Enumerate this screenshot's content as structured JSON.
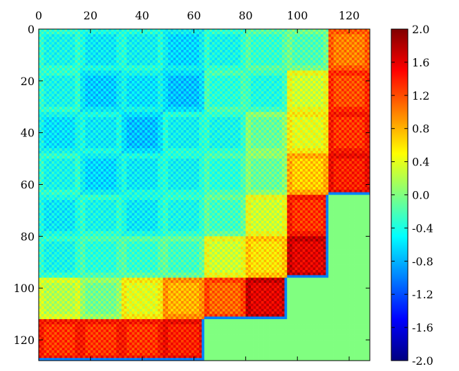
{
  "chart_data": {
    "type": "heatmap",
    "title": "",
    "xlabel": "",
    "ylabel": "",
    "grid": false,
    "colormap": "jet",
    "x_axis_position": "top",
    "y_axis_inverted": true,
    "xlim": [
      0,
      128
    ],
    "ylim": [
      128,
      0
    ],
    "x_ticks": [
      0,
      20,
      40,
      60,
      80,
      100,
      120
    ],
    "y_ticks": [
      0,
      20,
      40,
      60,
      80,
      100,
      120
    ],
    "colorbar": {
      "range": [
        -2.0,
        2.0
      ],
      "ticks": [
        "2.0",
        "1.6",
        "1.2",
        "0.8",
        "0.4",
        "0.0",
        "-0.4",
        "-0.8",
        "-1.2",
        "-1.6",
        "-2.0"
      ],
      "tick_values": [
        2.0,
        1.6,
        1.2,
        0.8,
        0.4,
        0.0,
        -0.4,
        -0.8,
        -1.2,
        -1.6,
        -2.0
      ]
    },
    "grid_size": 128,
    "block_size": 16,
    "block_boundaries": [
      0,
      16,
      32,
      48,
      64,
      80,
      96,
      112,
      128
    ],
    "block_values": [
      [
        -0.45,
        -0.55,
        -0.5,
        -0.65,
        -0.45,
        -0.3,
        -0.2,
        1.0
      ],
      [
        -0.45,
        -0.7,
        -0.6,
        -0.75,
        -0.35,
        -0.4,
        0.3,
        1.2
      ],
      [
        -0.6,
        -0.55,
        -0.75,
        -0.5,
        -0.45,
        -0.1,
        0.4,
        1.3
      ],
      [
        -0.45,
        -0.65,
        -0.55,
        -0.5,
        -0.35,
        -0.1,
        0.7,
        1.4
      ],
      [
        -0.55,
        -0.45,
        -0.55,
        -0.45,
        -0.25,
        0.3,
        1.3,
        0.0
      ],
      [
        -0.45,
        -0.35,
        -0.3,
        -0.25,
        0.3,
        0.6,
        1.6,
        0.0
      ],
      [
        0.2,
        -0.05,
        0.4,
        0.8,
        1.1,
        1.6,
        0.0,
        0.0
      ],
      [
        1.3,
        1.3,
        1.3,
        1.4,
        0.0,
        0.0,
        0.0,
        0.0
      ]
    ],
    "fill_value": 0.0,
    "border_value": -1.0
  }
}
